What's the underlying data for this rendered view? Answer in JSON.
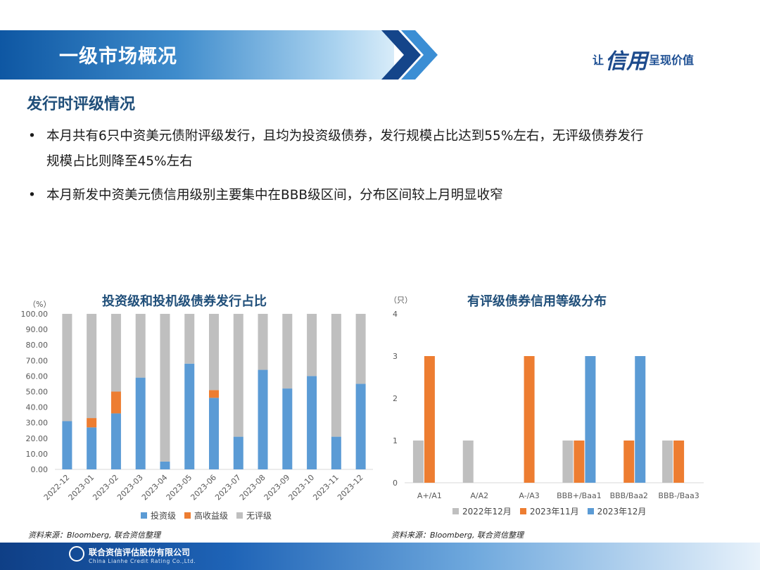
{
  "header": {
    "title": "一级市场概况",
    "slogan_pre": "让",
    "slogan_big": "信用",
    "slogan_post": "呈现价值"
  },
  "section": {
    "title": "发行时评级情况"
  },
  "bullets": [
    {
      "line1": "本月共有6只中资美元债附评级发行，且均为投资级债券，发行规模占比达到55%左右，无评级债券发行",
      "line2": "规模占比则降至45%左右"
    },
    {
      "line1": "本月新发中资美元债信用级别主要集中在BBB级区间，分布区间较上月明显收窄"
    }
  ],
  "charts": [
    {
      "title": "投资级和投机级债券发行占比",
      "unit": "（%）",
      "source": "资料来源：Bloomberg, 联合资信整理",
      "legend": [
        "投资级",
        "高收益级",
        "无评级"
      ]
    },
    {
      "title": "有评级债券信用等级分布",
      "unit": "（只）",
      "source": "资料来源：Bloomberg, 联合资信整理",
      "legend": [
        "2022年12月",
        "2023年11月",
        "2023年12月"
      ]
    }
  ],
  "chart_data": [
    {
      "type": "bar",
      "stacked": true,
      "title": "投资级和投机级债券发行占比",
      "ylabel": "（%）",
      "ylim": [
        0,
        100
      ],
      "yticks": [
        "0.00",
        "10.00",
        "20.00",
        "30.00",
        "40.00",
        "50.00",
        "60.00",
        "70.00",
        "80.00",
        "90.00",
        "100.00"
      ],
      "categories": [
        "2022-12",
        "2023-01",
        "2023-02",
        "2023-03",
        "2023-04",
        "2023-05",
        "2023-06",
        "2023-07",
        "2023-08",
        "2023-09",
        "2023-10",
        "2023-11",
        "2023-12"
      ],
      "series": [
        {
          "name": "投资级",
          "color": "#5b9bd5",
          "values": [
            31,
            27,
            36,
            59,
            5,
            68,
            46,
            21,
            64,
            52,
            60,
            21,
            55
          ]
        },
        {
          "name": "高收益级",
          "color": "#ed7d31",
          "values": [
            0,
            6,
            14,
            0,
            0,
            0,
            5,
            0,
            0,
            0,
            0,
            0,
            0
          ]
        },
        {
          "name": "无评级",
          "color": "#bfbfbf",
          "values": [
            69,
            67,
            50,
            41,
            95,
            32,
            49,
            79,
            36,
            48,
            40,
            79,
            45
          ]
        }
      ]
    },
    {
      "type": "bar",
      "title": "有评级债券信用等级分布",
      "ylabel": "（只）",
      "ylim": [
        0,
        4
      ],
      "yticks": [
        "0",
        "1",
        "2",
        "3",
        "4"
      ],
      "categories": [
        "A+/A1",
        "A/A2",
        "A-/A3",
        "BBB+/Baa1",
        "BBB/Baa2",
        "BBB-/Baa3"
      ],
      "series": [
        {
          "name": "2022年12月",
          "color": "#bfbfbf",
          "values": [
            1,
            1,
            0,
            1,
            0,
            1
          ]
        },
        {
          "name": "2023年11月",
          "color": "#ed7d31",
          "values": [
            3,
            0,
            3,
            1,
            1,
            1
          ]
        },
        {
          "name": "2023年12月",
          "color": "#5b9bd5",
          "values": [
            0,
            0,
            0,
            3,
            3,
            0
          ]
        }
      ]
    }
  ],
  "footer": {
    "company": "联合资信评估股份有限公司",
    "company_en": "China Lianhe Credit Rating Co.,Ltd."
  }
}
